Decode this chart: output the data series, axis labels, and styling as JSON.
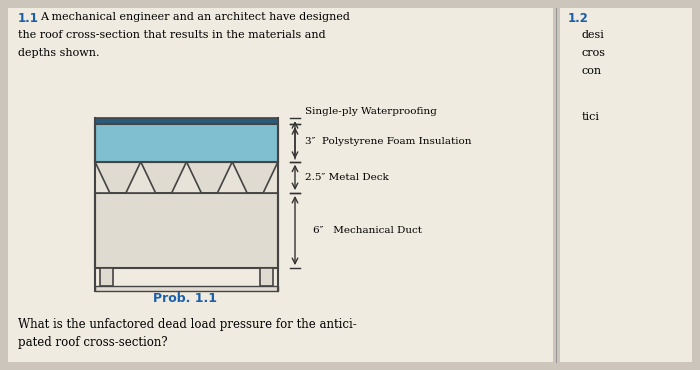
{
  "bg_color": "#ccc5bb",
  "page_bg": "#f0ebe0",
  "title_color": "#1a5fa8",
  "prob_color": "#1a5fa8",
  "label_waterproofing": "Single-ply Waterproofing",
  "label_foam": "3″  Polystyrene Foam Insulation",
  "label_deck": "2.5″ Metal Deck",
  "label_duct": "6″   Mechanical Duct",
  "prob_label": "Prob. 1.1",
  "foam_color": "#7fbfcf",
  "foam_edge": "#555555",
  "duct_color": "#e0dbd0",
  "deck_fill": "#e8e3d8",
  "deck_trap_fill": "#e0dbd0",
  "edge_color": "#444444",
  "dim_color": "#333333",
  "wp_color": "#2a5a7a",
  "page_line_color": "#999999"
}
